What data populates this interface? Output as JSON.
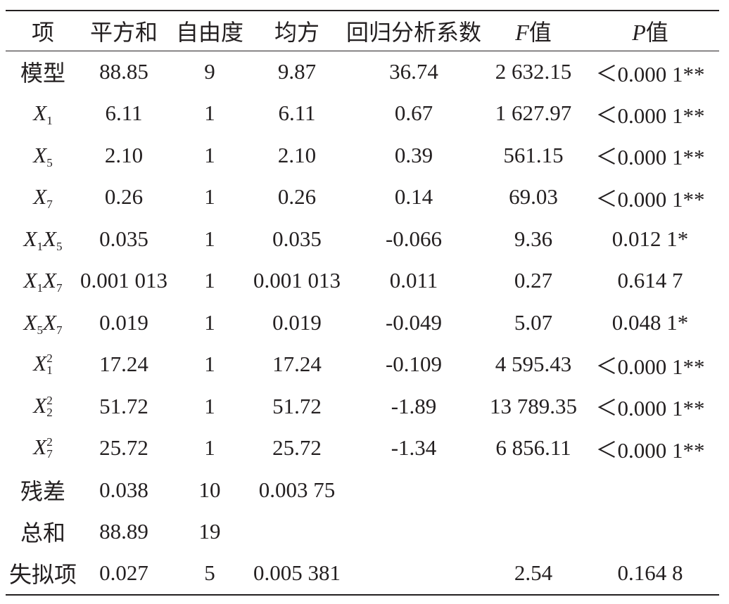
{
  "table": {
    "headers": {
      "item": "项",
      "sum_of_squares": "平方和",
      "df": "自由度",
      "mean_square": "均方",
      "coefficient": "回归分析系数",
      "f_var": "F",
      "f_suffix": "值",
      "p_var": "P",
      "p_suffix": "值"
    },
    "rows": [
      {
        "item": "模型",
        "ss": "88.85",
        "df": "9",
        "ms": "9.87",
        "coef": "36.74",
        "f": "2 632.15",
        "p": "＜0.000 1**"
      },
      {
        "item_var": "X",
        "item_sub": "1",
        "ss": "6.11",
        "df": "1",
        "ms": "6.11",
        "coef": "0.67",
        "f": "1 627.97",
        "p": "＜0.000 1**"
      },
      {
        "item_var": "X",
        "item_sub": "5",
        "ss": "2.10",
        "df": "1",
        "ms": "2.10",
        "coef": "0.39",
        "f": "561.15",
        "p": "＜0.000 1**"
      },
      {
        "item_var": "X",
        "item_sub": "7",
        "ss": "0.26",
        "df": "1",
        "ms": "0.26",
        "coef": "0.14",
        "f": "69.03",
        "p": "＜0.000 1**"
      },
      {
        "item_var": "X",
        "item_sub": "1",
        "item_var2": "X",
        "item_sub2": "5",
        "ss": "0.035",
        "df": "1",
        "ms": "0.035",
        "coef": "-0.066",
        "f": "9.36",
        "p": "0.012 1*"
      },
      {
        "item_var": "X",
        "item_sub": "1",
        "item_var2": "X",
        "item_sub2": "7",
        "ss": "0.001 013",
        "df": "1",
        "ms": "0.001 013",
        "coef": "0.011",
        "f": "0.27",
        "p": "0.614 7"
      },
      {
        "item_var": "X",
        "item_sub": "5",
        "item_var2": "X",
        "item_sub2": "7",
        "ss": "0.019",
        "df": "1",
        "ms": "0.019",
        "coef": "-0.049",
        "f": "5.07",
        "p": "0.048 1*"
      },
      {
        "item_var": "X",
        "item_sub": "1",
        "item_sup": "2",
        "ss": "17.24",
        "df": "1",
        "ms": "17.24",
        "coef": "-0.109",
        "f": "4 595.43",
        "p": "＜0.000 1**"
      },
      {
        "item_var": "X",
        "item_sub": "2",
        "item_sup": "2",
        "ss": "51.72",
        "df": "1",
        "ms": "51.72",
        "coef": "-1.89",
        "f": "13 789.35",
        "p": "＜0.000 1**"
      },
      {
        "item_var": "X",
        "item_sub": "7",
        "item_sup": "2",
        "ss": "25.72",
        "df": "1",
        "ms": "25.72",
        "coef": "-1.34",
        "f": "6 856.11",
        "p": "＜0.000 1**"
      },
      {
        "item": "残差",
        "ss": "0.038",
        "df": "10",
        "ms": "0.003 75",
        "coef": "",
        "f": "",
        "p": ""
      },
      {
        "item": "总和",
        "ss": "88.89",
        "df": "19",
        "ms": "",
        "coef": "",
        "f": "",
        "p": ""
      },
      {
        "item": "失拟项",
        "ss": "0.027",
        "df": "5",
        "ms": "0.005 381",
        "coef": "",
        "f": "2.54",
        "p": "0.164 8"
      }
    ]
  }
}
